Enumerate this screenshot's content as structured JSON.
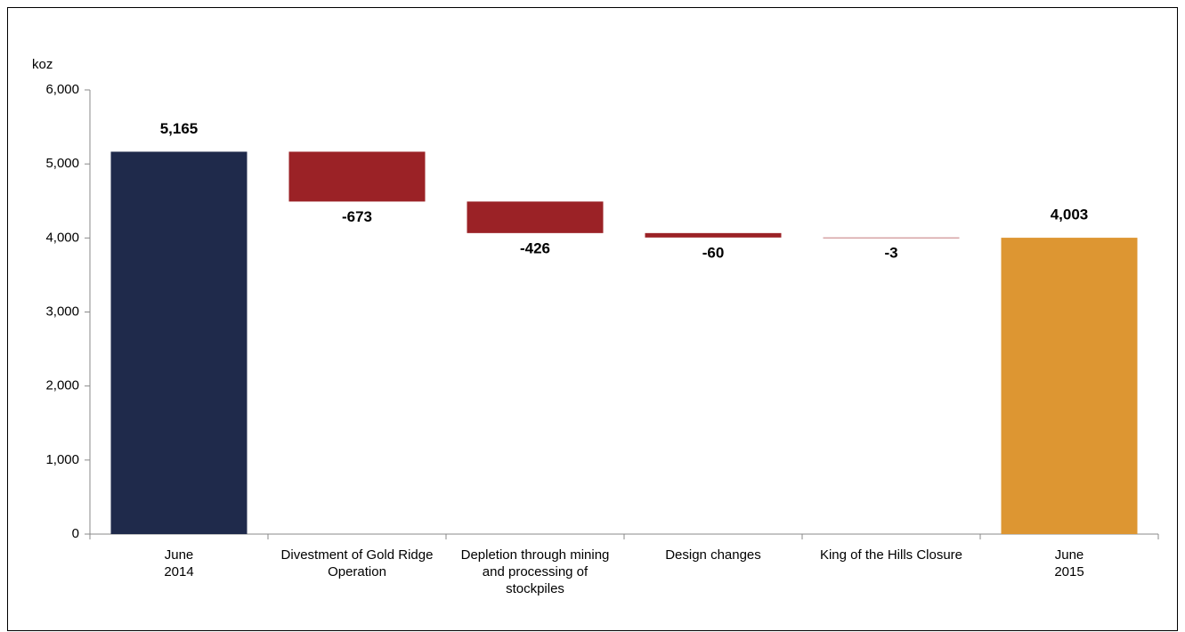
{
  "chart_data": {
    "type": "waterfall",
    "y_label": "koz",
    "categories": [
      "June\n2014",
      "Divestment of Gold Ridge\nOperation",
      "Depletion through mining\nand processing of\nstockpiles",
      "Design changes",
      "King of the Hills Closure",
      "June\n2015"
    ],
    "values": [
      5165,
      -673,
      -426,
      -60,
      -3,
      4003
    ],
    "value_labels": [
      "5,165",
      "-673",
      "-426",
      "-60",
      "-3",
      "4,003"
    ],
    "totals": [
      0,
      5
    ],
    "colors": [
      "#1f2a4b",
      "#9b2226",
      "#9b2226",
      "#9b2226",
      "#9b2226",
      "#dd9632"
    ],
    "ylim": [
      0,
      6000
    ],
    "yticks": [
      0,
      {
        "value": 1000,
        "label": "1,000"
      },
      {
        "value": 2000,
        "label": "2,000"
      },
      {
        "value": 3000,
        "label": "3,000"
      },
      {
        "value": 4000,
        "label": "4,000"
      },
      {
        "value": 5000,
        "label": "5,000"
      },
      {
        "value": 6000,
        "label": "6,000"
      }
    ]
  }
}
